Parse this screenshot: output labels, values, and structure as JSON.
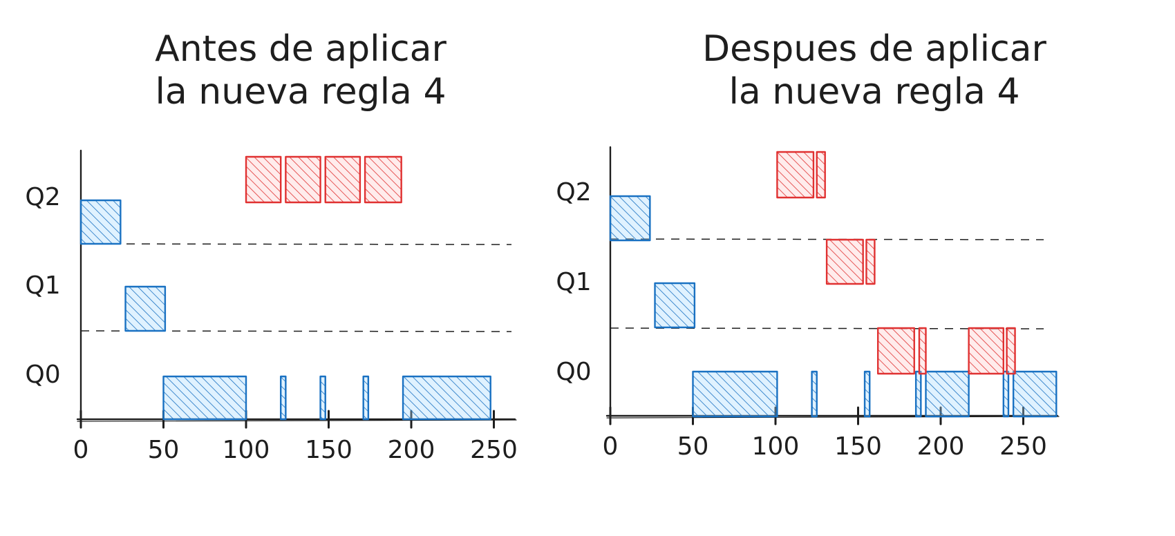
{
  "colors": {
    "ink": "#1e1e1e",
    "blue_fill": "#a5d8ff",
    "blue_stroke": "#1971c2",
    "red_fill": "#ffc9c9",
    "red_stroke": "#e03131"
  },
  "chart_data": [
    {
      "type": "bar",
      "title_lines": [
        "Antes de aplicar",
        "la nueva regla 4"
      ],
      "queues": [
        "Q0",
        "Q1",
        "Q2"
      ],
      "x_ticks": [
        "0",
        "50",
        "100",
        "150",
        "200",
        "250"
      ],
      "xlim": [
        0,
        265
      ],
      "grid": false,
      "series": [
        {
          "color": "blue",
          "segments": [
            {
              "queue": "Q2",
              "start": 0,
              "end": 24
            },
            {
              "queue": "Q1",
              "start": 27,
              "end": 51
            },
            {
              "queue": "Q0",
              "start": 50,
              "end": 100
            },
            {
              "queue": "Q0",
              "start": 121,
              "end": 124
            },
            {
              "queue": "Q0",
              "start": 145,
              "end": 148
            },
            {
              "queue": "Q0",
              "start": 171,
              "end": 174
            },
            {
              "queue": "Q0",
              "start": 195,
              "end": 248
            }
          ]
        },
        {
          "color": "red",
          "segments": [
            {
              "queue": "Q2",
              "start": 100,
              "end": 121
            },
            {
              "queue": "Q2",
              "start": 124,
              "end": 145
            },
            {
              "queue": "Q2",
              "start": 148,
              "end": 169
            },
            {
              "queue": "Q2",
              "start": 172,
              "end": 194
            }
          ]
        }
      ]
    },
    {
      "type": "bar",
      "title_lines": [
        "Despues de aplicar",
        "la nueva regla 4"
      ],
      "queues": [
        "Q0",
        "Q1",
        "Q2"
      ],
      "x_ticks": [
        "0",
        "50",
        "100",
        "150",
        "200",
        "250"
      ],
      "xlim": [
        0,
        265
      ],
      "grid": false,
      "series": [
        {
          "color": "blue",
          "segments": [
            {
              "queue": "Q2",
              "start": 0,
              "end": 24
            },
            {
              "queue": "Q1",
              "start": 27,
              "end": 51
            },
            {
              "queue": "Q0",
              "start": 50,
              "end": 101
            },
            {
              "queue": "Q0",
              "start": 122,
              "end": 125
            },
            {
              "queue": "Q0",
              "start": 154,
              "end": 157
            },
            {
              "queue": "Q0",
              "start": 185,
              "end": 188
            },
            {
              "queue": "Q0",
              "start": 191,
              "end": 217
            },
            {
              "queue": "Q0",
              "start": 238,
              "end": 241
            },
            {
              "queue": "Q0",
              "start": 244,
              "end": 270
            }
          ]
        },
        {
          "color": "red",
          "segments": [
            {
              "queue": "Q2",
              "start": 101,
              "end": 123
            },
            {
              "queue": "Q2",
              "start": 125,
              "end": 130
            },
            {
              "queue": "Q1",
              "start": 131,
              "end": 153
            },
            {
              "queue": "Q1",
              "start": 155,
              "end": 160
            },
            {
              "queue": "Q0",
              "start": 162,
              "end": 184
            },
            {
              "queue": "Q0",
              "start": 187,
              "end": 191
            },
            {
              "queue": "Q0",
              "start": 217,
              "end": 238
            },
            {
              "queue": "Q0",
              "start": 240,
              "end": 245
            }
          ]
        }
      ]
    }
  ]
}
